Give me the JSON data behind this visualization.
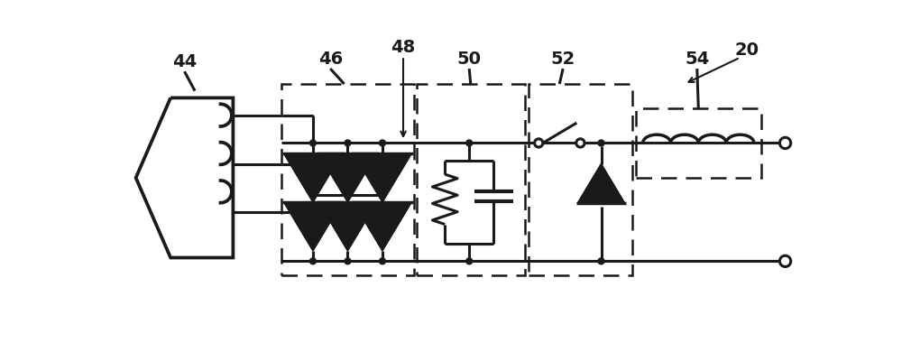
{
  "bg_color": "#ffffff",
  "lc": "#1a1a1a",
  "lw": 2.2,
  "fig_width": 10.0,
  "fig_height": 3.9,
  "dpi": 100
}
